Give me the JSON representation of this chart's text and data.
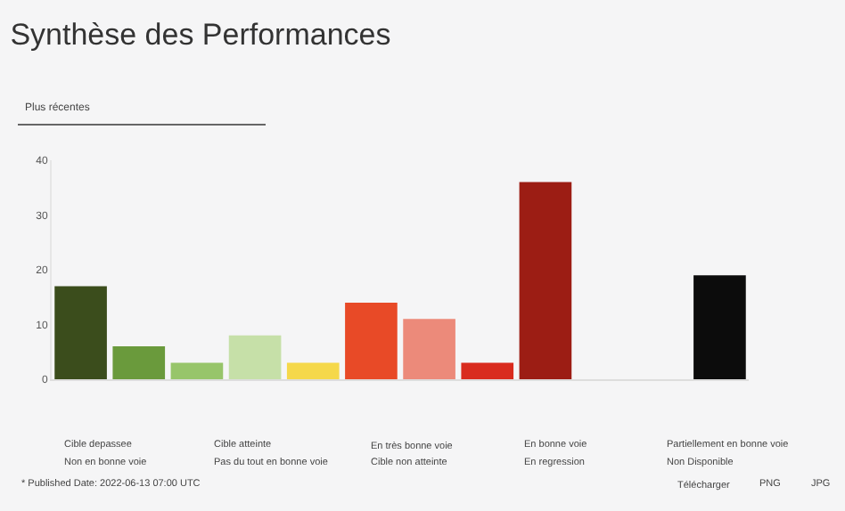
{
  "chart_data": {
    "type": "bar",
    "title": "Synthèse des Performances",
    "categories": [
      null,
      null,
      null,
      null,
      null,
      null,
      null,
      null,
      null,
      null,
      null,
      null
    ],
    "values": [
      17,
      6,
      3,
      8,
      3,
      14,
      11,
      3,
      36,
      null,
      null,
      19
    ],
    "colors": [
      "#3b4d1c",
      "#6a9a3c",
      "#97c56a",
      "#c6e0a8",
      "#f5d84a",
      "#e84a27",
      "#ec8a7a",
      "#d92b1e",
      "#9c1d14",
      "#cccccc",
      "#cccccc",
      "#0c0c0c"
    ],
    "ylim": [
      0,
      40
    ],
    "yticks": [
      0,
      10,
      20,
      30,
      40
    ],
    "grid": false,
    "annotations": [
      "Plus récentes",
      "Cible depassee",
      "Cible atteinte",
      "En très bonne voie",
      "En bonne voie",
      "Partiellement en bonne voie",
      "Non en bonne voie",
      "Pas du tout en bonne voie",
      "Cible non atteinte",
      "En regression",
      "Non Disponible",
      "* Published Date: 2022-06-13 07:00 UTC",
      "Télécharger",
      "PNG",
      "JPG"
    ]
  }
}
